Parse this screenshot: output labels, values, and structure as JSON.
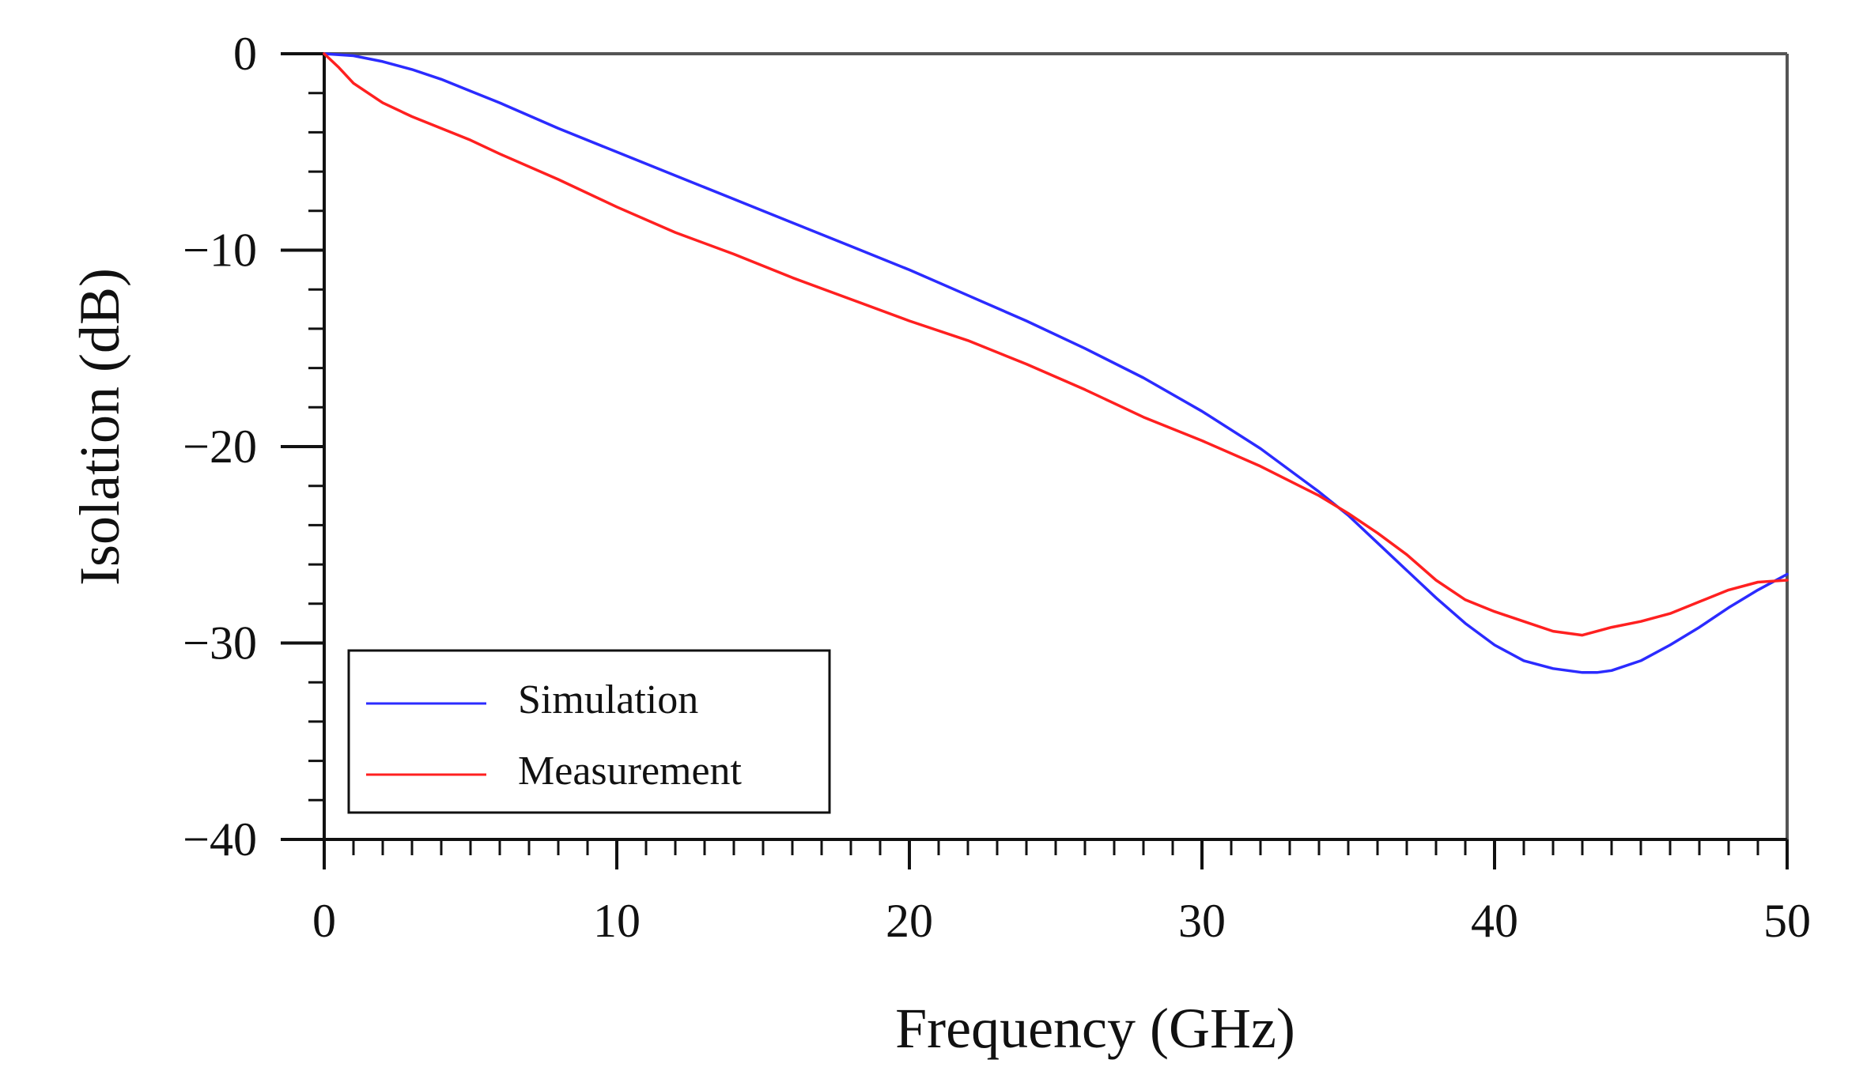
{
  "chart_data": {
    "type": "line",
    "title": "",
    "xlabel": "Frequency (GHz)",
    "ylabel": "Isolation (dB)",
    "xlim": [
      0,
      50
    ],
    "ylim": [
      -40,
      0
    ],
    "x_ticks": [
      0,
      10,
      20,
      30,
      40,
      50
    ],
    "x_tick_labels": [
      "0",
      "10",
      "20",
      "30",
      "40",
      "50"
    ],
    "y_ticks": [
      0,
      -10,
      -20,
      -30,
      -40
    ],
    "y_tick_labels": [
      "0",
      "−10",
      "−20",
      "−30",
      "−40"
    ],
    "x_minor_step": 1,
    "y_minor_step": 2,
    "grid": false,
    "legend_position": "bottom-left",
    "series": [
      {
        "name": "Simulation",
        "color": "#2b2bff",
        "x": [
          0,
          1,
          2,
          3,
          4,
          5,
          6,
          8,
          10,
          12,
          14,
          16,
          18,
          20,
          22,
          24,
          26,
          28,
          30,
          32,
          34,
          35,
          36,
          37,
          38,
          39,
          40,
          41,
          42,
          43,
          43.5,
          44,
          45,
          46,
          47,
          48,
          49,
          50
        ],
        "y": [
          0,
          -0.1,
          -0.4,
          -0.8,
          -1.3,
          -1.9,
          -2.5,
          -3.8,
          -5.0,
          -6.2,
          -7.4,
          -8.6,
          -9.8,
          -11.0,
          -12.3,
          -13.6,
          -15.0,
          -16.5,
          -18.2,
          -20.1,
          -22.3,
          -23.5,
          -24.9,
          -26.3,
          -27.7,
          -29.0,
          -30.1,
          -30.9,
          -31.3,
          -31.5,
          -31.5,
          -31.4,
          -30.9,
          -30.1,
          -29.2,
          -28.2,
          -27.3,
          -26.5
        ]
      },
      {
        "name": "Measurement",
        "color": "#ff2020",
        "x": [
          0,
          0.5,
          1,
          2,
          3,
          4,
          5,
          6,
          8,
          10,
          12,
          14,
          16,
          18,
          20,
          22,
          24,
          26,
          28,
          30,
          32,
          34,
          35,
          36,
          37,
          38,
          39,
          40,
          41,
          42,
          43,
          44,
          45,
          46,
          47,
          48,
          49,
          50
        ],
        "y": [
          0,
          -0.7,
          -1.5,
          -2.5,
          -3.2,
          -3.8,
          -4.4,
          -5.1,
          -6.4,
          -7.8,
          -9.1,
          -10.2,
          -11.4,
          -12.5,
          -13.6,
          -14.6,
          -15.8,
          -17.1,
          -18.5,
          -19.7,
          -21.0,
          -22.5,
          -23.4,
          -24.4,
          -25.5,
          -26.8,
          -27.8,
          -28.4,
          -28.9,
          -29.4,
          -29.6,
          -29.2,
          -28.9,
          -28.5,
          -27.9,
          -27.3,
          -26.9,
          -26.8
        ]
      }
    ]
  }
}
